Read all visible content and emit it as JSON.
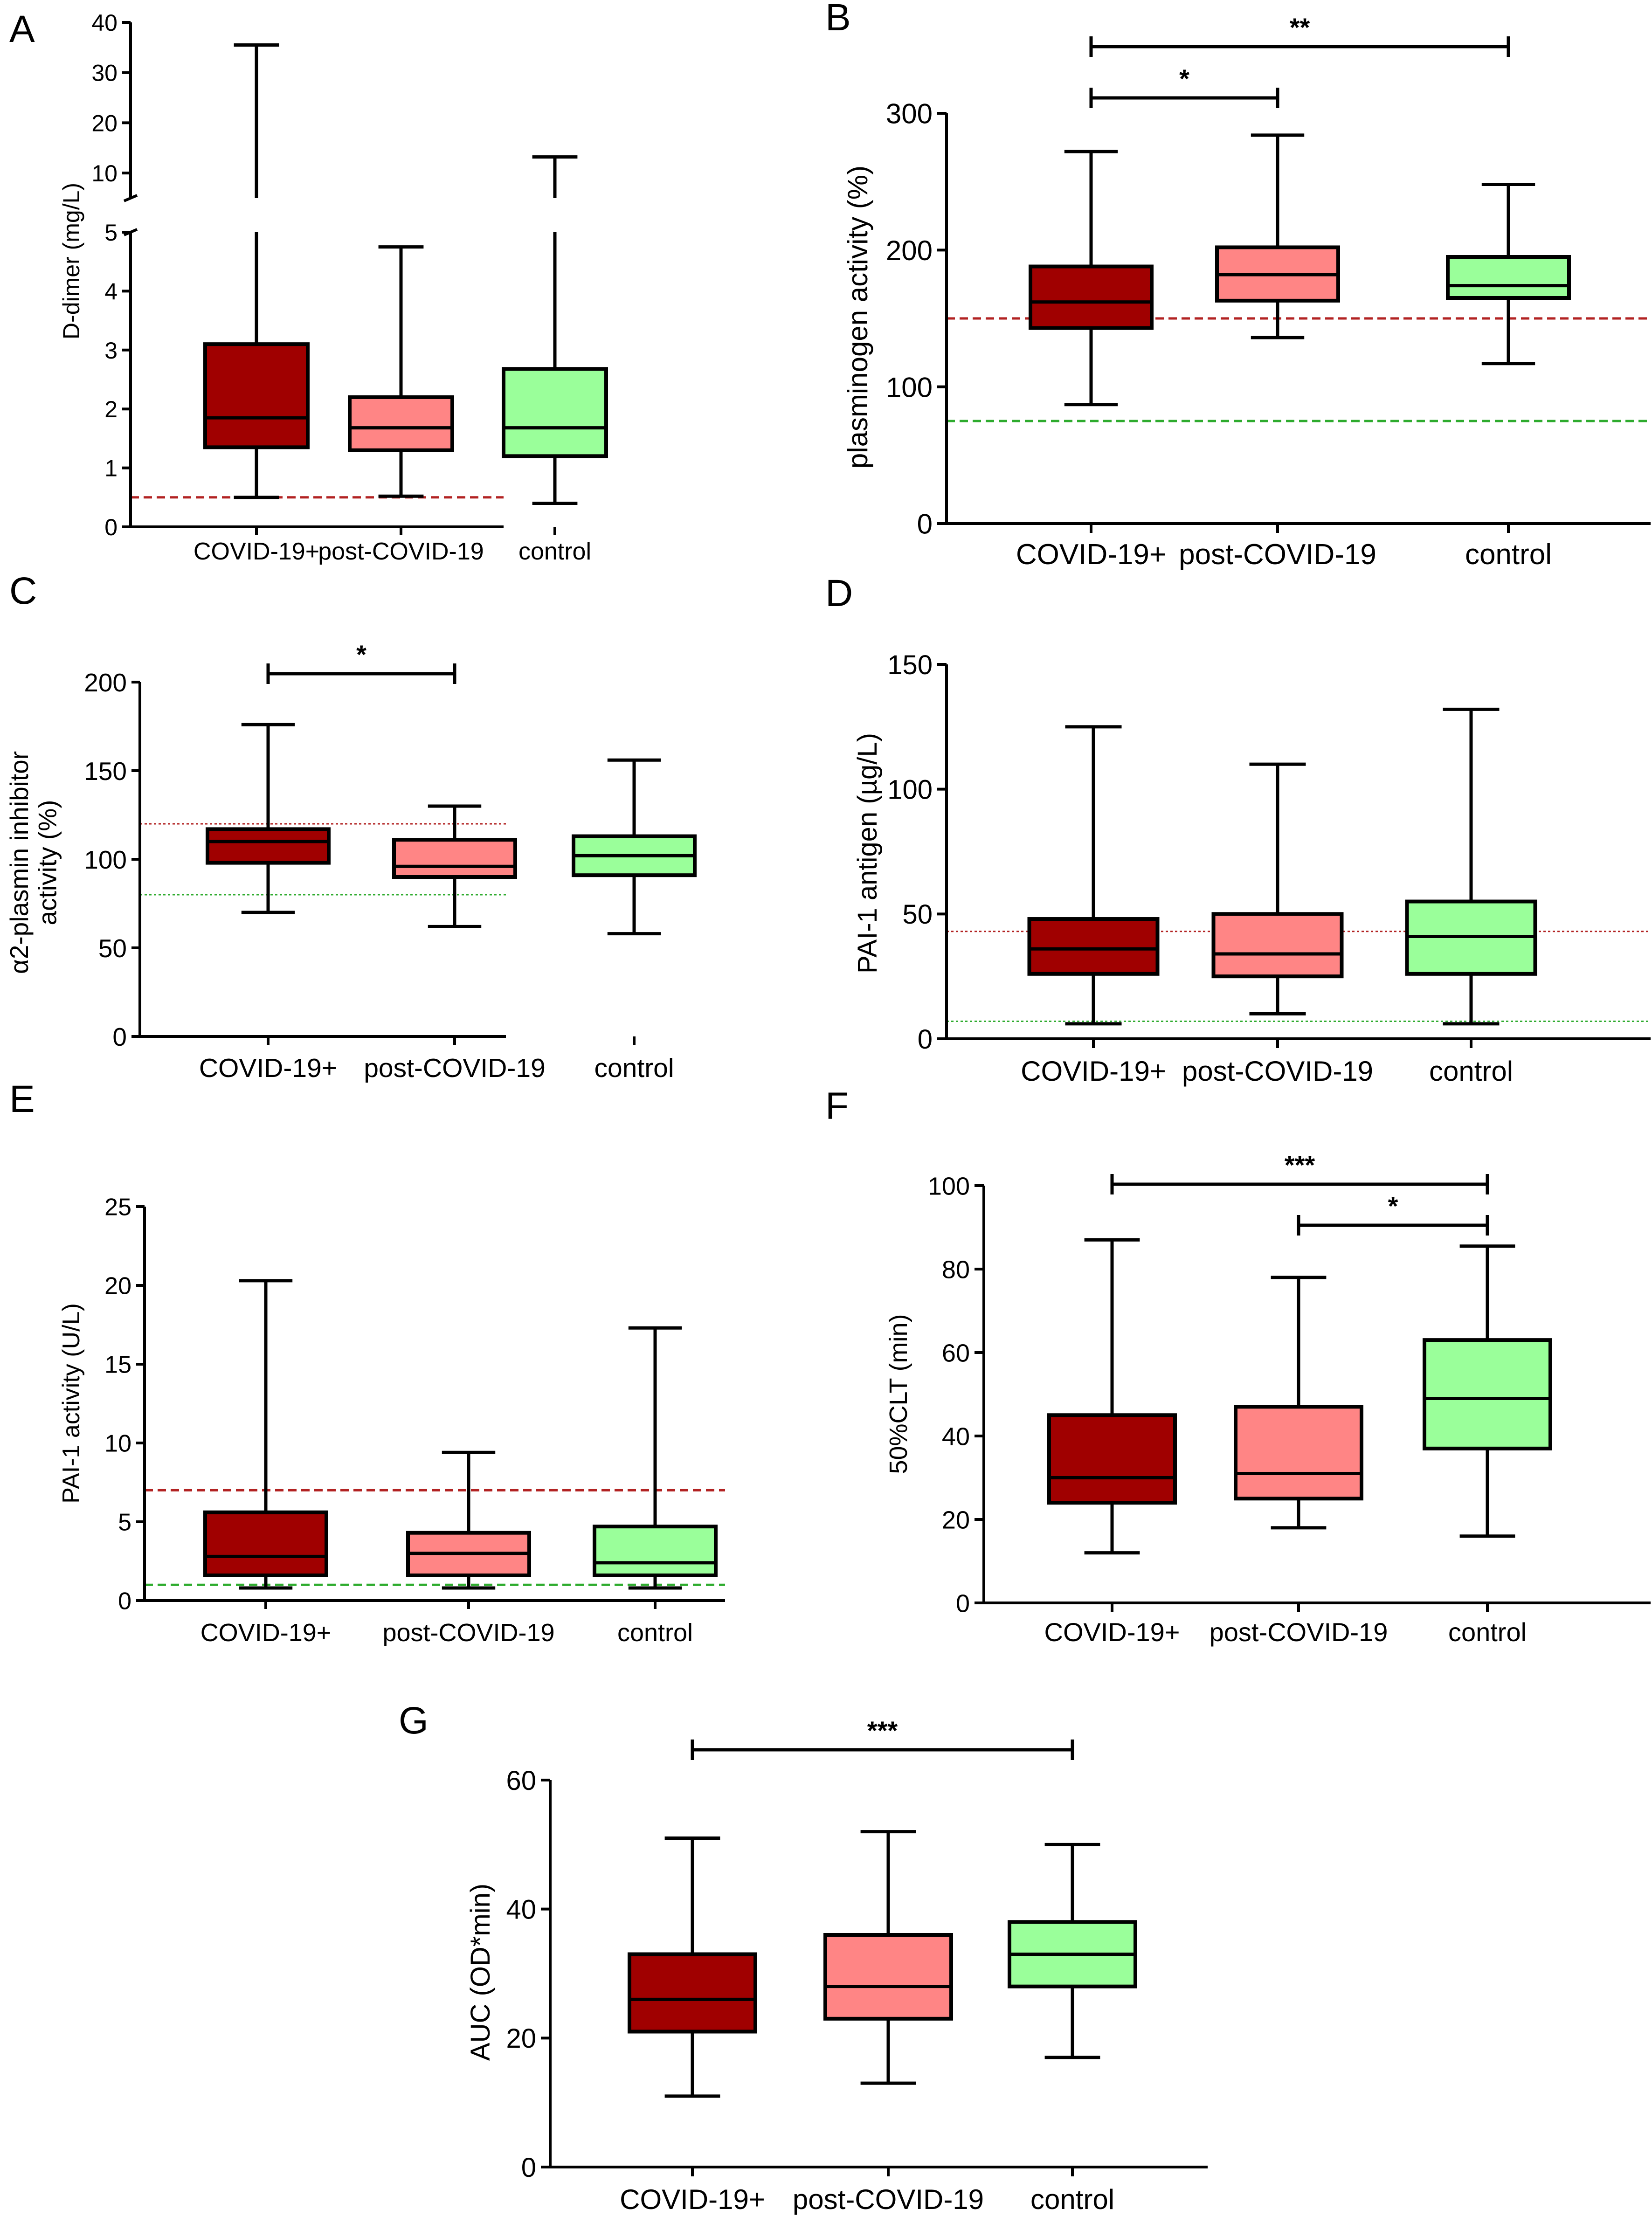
{
  "colors": {
    "covid": "#a00000",
    "post": "#ff8585",
    "control": "#9aff9a",
    "ref_red": "#b22222",
    "ref_green": "#2eab2e"
  },
  "chart_data": [
    {
      "panel": "A",
      "type": "box",
      "ylabel": "D-dimer (mg/L)",
      "categories": [
        "COVID-19+",
        "post-COVID-19",
        "control"
      ],
      "ylim": [
        0,
        40
      ],
      "axis_break": {
        "lower": [
          0,
          5
        ],
        "upper": [
          5,
          40
        ]
      },
      "yticks": [
        0,
        1,
        2,
        3,
        4,
        5,
        10,
        20,
        30,
        40
      ],
      "boxes": [
        {
          "min": 0.5,
          "q1": 1.35,
          "median": 1.85,
          "q3": 3.1,
          "max": 35.5
        },
        {
          "min": 0.52,
          "q1": 1.3,
          "median": 1.68,
          "q3": 2.2,
          "max": 4.75
        },
        {
          "min": 0.4,
          "q1": 1.2,
          "median": 1.68,
          "q3": 2.68,
          "max": 13.2
        }
      ],
      "reference_lines": [
        {
          "value": 0.5,
          "color": "ref_red",
          "style": "dashed"
        }
      ],
      "significance": []
    },
    {
      "panel": "B",
      "type": "box",
      "ylabel": "plasminogen activity (%)",
      "categories": [
        "COVID-19+",
        "post-COVID-19",
        "control"
      ],
      "ylim": [
        0,
        300
      ],
      "yticks": [
        0,
        100,
        200,
        300
      ],
      "boxes": [
        {
          "min": 87,
          "q1": 143,
          "median": 162,
          "q3": 188,
          "max": 272
        },
        {
          "min": 136,
          "q1": 163,
          "median": 182,
          "q3": 202,
          "max": 284
        },
        {
          "min": 117,
          "q1": 165,
          "median": 174,
          "q3": 195,
          "max": 248
        }
      ],
      "reference_lines": [
        {
          "value": 150,
          "color": "ref_red",
          "style": "dashed"
        },
        {
          "value": 75,
          "color": "ref_green",
          "style": "dashed"
        }
      ],
      "significance": [
        {
          "from": 0,
          "to": 1,
          "label": "*",
          "level": 1
        },
        {
          "from": 0,
          "to": 2,
          "label": "**",
          "level": 2
        }
      ]
    },
    {
      "panel": "C",
      "type": "box",
      "ylabel": [
        "α2-plasmin inhibitor",
        "activity (%)"
      ],
      "categories": [
        "COVID-19+",
        "post-COVID-19",
        "control"
      ],
      "ylim": [
        0,
        200
      ],
      "yticks": [
        0,
        50,
        100,
        150,
        200
      ],
      "boxes": [
        {
          "min": 70,
          "q1": 98,
          "median": 110,
          "q3": 117,
          "max": 176
        },
        {
          "min": 62,
          "q1": 90,
          "median": 96,
          "q3": 111,
          "max": 130
        },
        {
          "min": 58,
          "q1": 91,
          "median": 102,
          "q3": 113,
          "max": 156
        }
      ],
      "reference_lines": [
        {
          "value": 120,
          "color": "ref_red",
          "style": "dotted"
        },
        {
          "value": 80,
          "color": "ref_green",
          "style": "dotted"
        }
      ],
      "significance": [
        {
          "from": 0,
          "to": 1,
          "label": "*",
          "level": 1
        }
      ]
    },
    {
      "panel": "D",
      "type": "box",
      "ylabel": "PAI-1 antigen (µg/L)",
      "categories": [
        "COVID-19+",
        "post-COVID-19",
        "control"
      ],
      "ylim": [
        0,
        150
      ],
      "yticks": [
        0,
        50,
        100,
        150
      ],
      "boxes": [
        {
          "min": 6,
          "q1": 26,
          "median": 36,
          "q3": 48,
          "max": 125
        },
        {
          "min": 10,
          "q1": 25,
          "median": 34,
          "q3": 50,
          "max": 110
        },
        {
          "min": 6,
          "q1": 26,
          "median": 41,
          "q3": 55,
          "max": 132
        }
      ],
      "reference_lines": [
        {
          "value": 43,
          "color": "ref_red",
          "style": "dotted"
        },
        {
          "value": 7,
          "color": "ref_green",
          "style": "dotted"
        }
      ],
      "significance": []
    },
    {
      "panel": "E",
      "type": "box",
      "ylabel": "PAI-1 activity (U/L)",
      "categories": [
        "COVID-19+",
        "post-COVID-19",
        "control"
      ],
      "ylim": [
        0,
        25
      ],
      "yticks": [
        0,
        5,
        10,
        15,
        20,
        25
      ],
      "boxes": [
        {
          "min": 0.8,
          "q1": 1.6,
          "median": 2.8,
          "q3": 5.6,
          "max": 20.3
        },
        {
          "min": 0.8,
          "q1": 1.6,
          "median": 3.0,
          "q3": 4.3,
          "max": 9.4
        },
        {
          "min": 0.8,
          "q1": 1.6,
          "median": 2.4,
          "q3": 4.7,
          "max": 17.3
        }
      ],
      "reference_lines": [
        {
          "value": 7,
          "color": "ref_red",
          "style": "dashed"
        },
        {
          "value": 1,
          "color": "ref_green",
          "style": "dashed"
        }
      ],
      "significance": []
    },
    {
      "panel": "F",
      "type": "box",
      "ylabel": "50%CLT (min)",
      "categories": [
        "COVID-19+",
        "post-COVID-19",
        "control"
      ],
      "ylim": [
        0,
        100
      ],
      "yticks": [
        0,
        20,
        40,
        60,
        80,
        100
      ],
      "boxes": [
        {
          "min": 12,
          "q1": 24,
          "median": 30,
          "q3": 45,
          "max": 87
        },
        {
          "min": 18,
          "q1": 25,
          "median": 31,
          "q3": 47,
          "max": 78
        },
        {
          "min": 16,
          "q1": 37,
          "median": 49,
          "q3": 63,
          "max": 85.5
        }
      ],
      "reference_lines": [],
      "significance": [
        {
          "from": 1,
          "to": 2,
          "label": "*",
          "level": 1
        },
        {
          "from": 0,
          "to": 2,
          "label": "***",
          "level": 2
        }
      ]
    },
    {
      "panel": "G",
      "type": "box",
      "ylabel": "AUC (OD*min)",
      "categories": [
        "COVID-19+",
        "post-COVID-19",
        "control"
      ],
      "ylim": [
        0,
        60
      ],
      "yticks": [
        0,
        20,
        40,
        60
      ],
      "boxes": [
        {
          "min": 11,
          "q1": 21,
          "median": 26,
          "q3": 33,
          "max": 51
        },
        {
          "min": 13,
          "q1": 23,
          "median": 28,
          "q3": 36,
          "max": 52
        },
        {
          "min": 17,
          "q1": 28,
          "median": 33,
          "q3": 38,
          "max": 50
        }
      ],
      "reference_lines": [],
      "significance": [
        {
          "from": 0,
          "to": 2,
          "label": "***",
          "level": 1
        }
      ]
    }
  ]
}
